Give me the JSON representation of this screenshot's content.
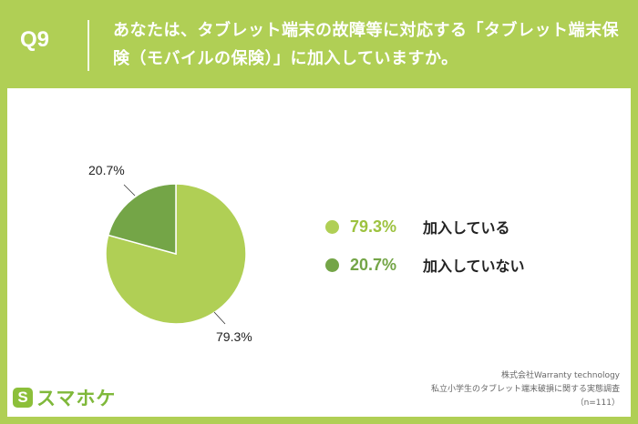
{
  "header": {
    "question_number": "Q9",
    "question_text": "あなたは、タブレット端末の故障等に対応する「タブレット端末保険（モバイルの保険）」に加入していますか。"
  },
  "chart_data": {
    "type": "pie",
    "slices": [
      {
        "label": "加入している",
        "value": 79.3,
        "display": "79.3%",
        "color": "#b0cf55"
      },
      {
        "label": "加入していない",
        "value": 20.7,
        "display": "20.7%",
        "color": "#74a547"
      }
    ]
  },
  "footer": {
    "logo_text": "スマホケ",
    "source_line1": "株式会社Warranty technology",
    "source_line2": "私立小学生のタブレット端末破損に関する実態調査",
    "source_line3": "（n=111）"
  },
  "colors": {
    "accent": "#b0cf55",
    "dark_green": "#74a547",
    "background": "#ffffff"
  }
}
